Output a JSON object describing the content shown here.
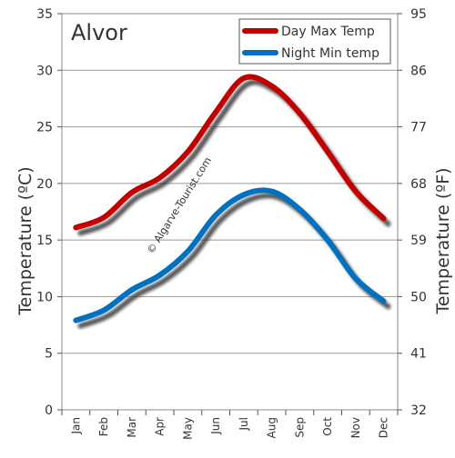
{
  "chart_data": {
    "type": "line",
    "title": "Alvor",
    "ylabel_left": "Temperature  (ºC)",
    "ylabel_right": "Temperature (ºF)",
    "watermark": "© Algarve-Tourist.com",
    "categories": [
      "Jan",
      "Feb",
      "Mar",
      "Apr",
      "May",
      "Jun",
      "Jul",
      "Aug",
      "Sep",
      "Oct",
      "Nov",
      "Dec"
    ],
    "ylim": [
      0,
      35
    ],
    "yticks_left": [
      "0",
      "5",
      "10",
      "15",
      "20",
      "25",
      "30",
      "35"
    ],
    "yticks_right": [
      "32",
      "41",
      "50",
      "59",
      "68",
      "77",
      "86",
      "95"
    ],
    "grid": true,
    "legend_position": "top-right",
    "series": [
      {
        "name": "Day Max Temp",
        "color": "#c00000",
        "values": [
          16.1,
          17.0,
          19.2,
          20.5,
          22.8,
          26.3,
          29.3,
          28.6,
          26.2,
          22.8,
          19.3,
          16.9
        ]
      },
      {
        "name": "Night Min temp",
        "color": "#0070c0",
        "values": [
          7.9,
          8.8,
          10.6,
          11.9,
          14.0,
          17.2,
          19.0,
          19.3,
          17.7,
          15.0,
          11.6,
          9.6
        ]
      }
    ]
  }
}
